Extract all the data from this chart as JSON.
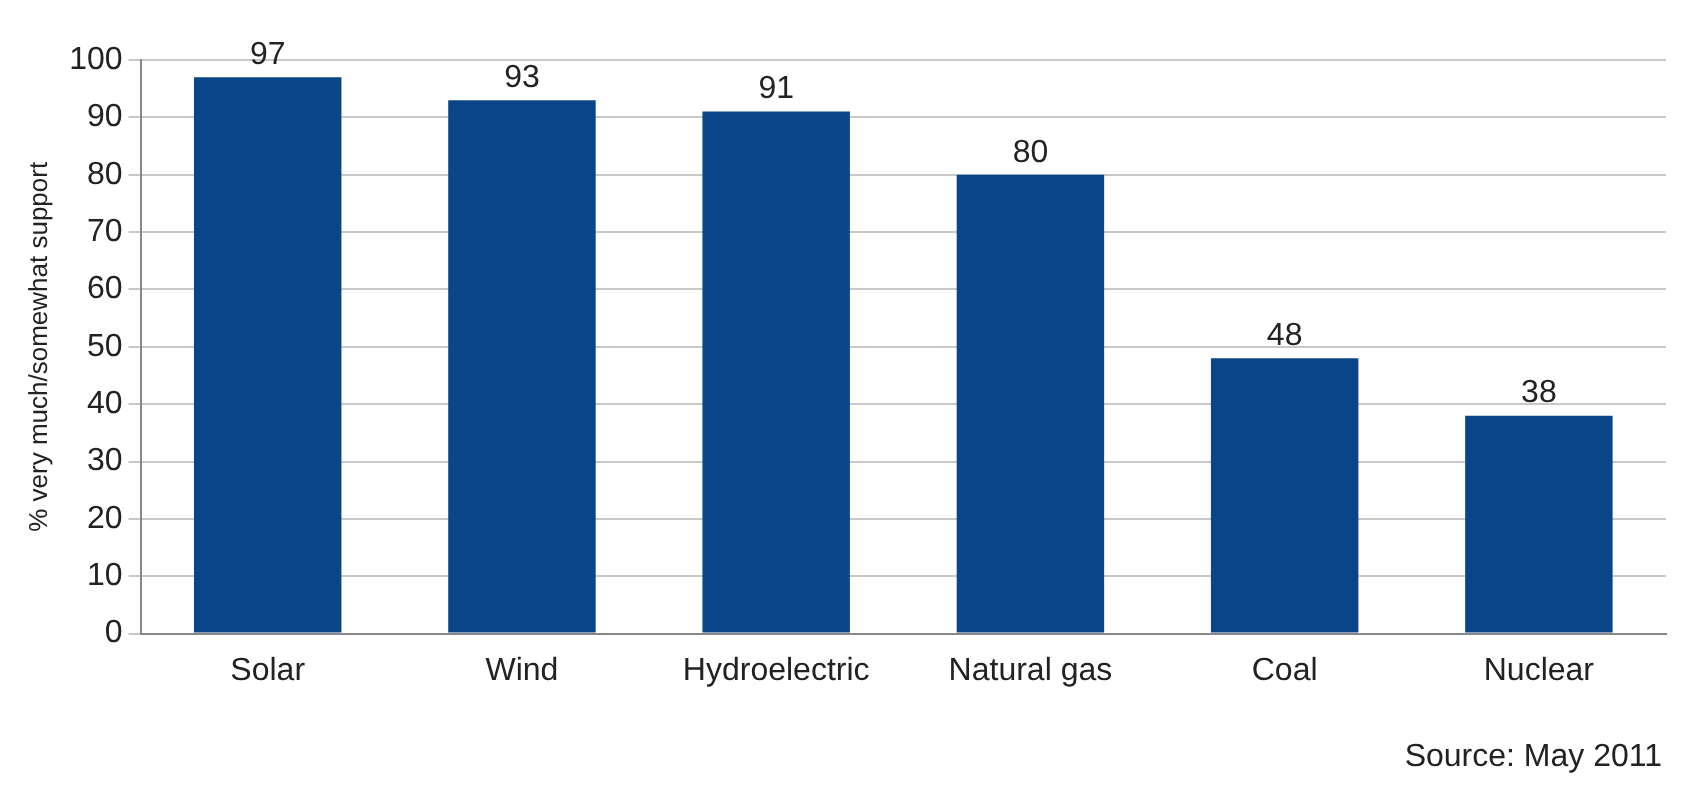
{
  "chart_data": {
    "type": "bar",
    "ylabel": "% very much/somewhat support",
    "categories": [
      "Solar",
      "Wind",
      "Hydroelectric",
      "Natural gas",
      "Coal",
      "Nuclear"
    ],
    "values": [
      97,
      93,
      91,
      80,
      48,
      38
    ],
    "color": "#0a4587",
    "ylim": [
      0,
      100
    ],
    "yticks": [
      0,
      10,
      20,
      30,
      40,
      50,
      60,
      70,
      80,
      90,
      100
    ],
    "grid": "y",
    "data_labels": true,
    "annotations": [
      "Source: May 2011"
    ]
  }
}
